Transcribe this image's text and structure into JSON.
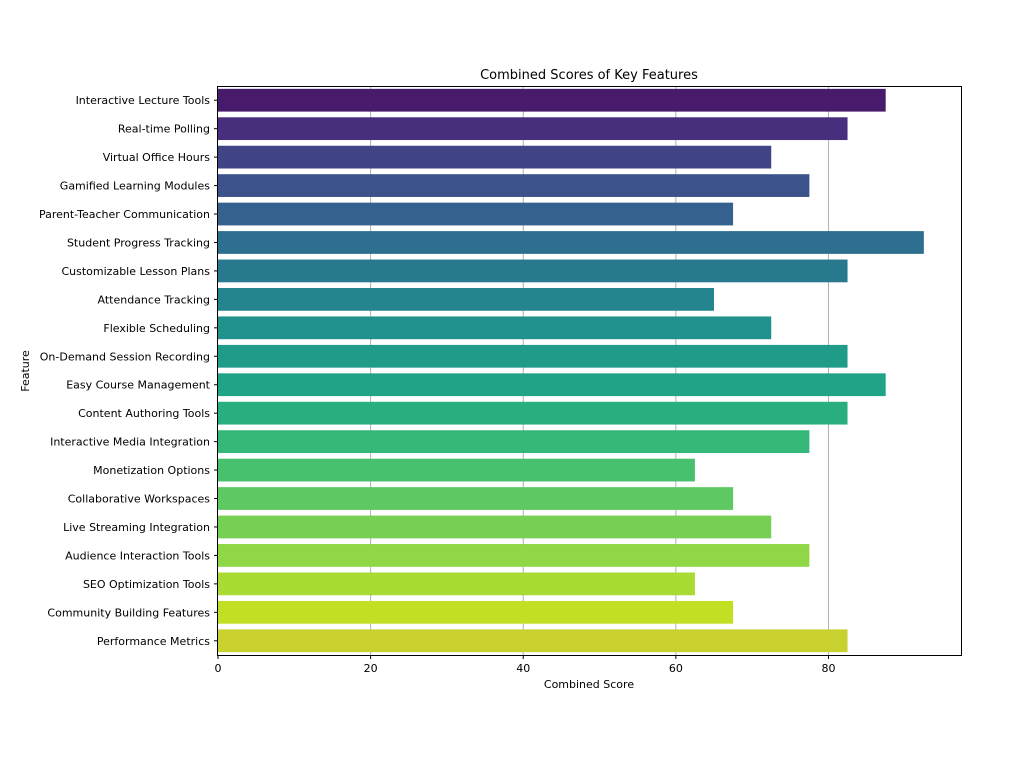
{
  "chart_data": {
    "type": "bar",
    "orientation": "horizontal",
    "title": "Combined Scores of Key Features",
    "xlabel": "Combined Score",
    "ylabel": "Feature",
    "xlim": [
      0,
      97.5
    ],
    "xticks": [
      0,
      20,
      40,
      60,
      80
    ],
    "grid": "vertical",
    "colormap": "viridis",
    "categories": [
      "Interactive Lecture Tools",
      "Real-time Polling",
      "Virtual Office Hours",
      "Gamified Learning Modules",
      "Parent-Teacher Communication",
      "Student Progress Tracking",
      "Customizable Lesson Plans",
      "Attendance Tracking",
      "Flexible Scheduling",
      "On-Demand Session Recording",
      "Easy Course Management",
      "Content Authoring Tools",
      "Interactive Media Integration",
      "Monetization Options",
      "Collaborative Workspaces",
      "Live Streaming Integration",
      "Audience Interaction Tools",
      "SEO Optimization Tools",
      "Community Building Features",
      "Performance Metrics"
    ],
    "values": [
      87.5,
      82.5,
      72.5,
      77.5,
      67.5,
      92.5,
      82.5,
      65,
      72.5,
      82.5,
      87.5,
      82.5,
      77.5,
      62.5,
      67.5,
      72.5,
      77.5,
      62.5,
      67.5,
      82.5
    ],
    "colors": [
      "#481a6c",
      "#472f7d",
      "#414487",
      "#3b528b",
      "#34618d",
      "#2e6e8e",
      "#29798e",
      "#25858e",
      "#21918c",
      "#1e9c89",
      "#20a386",
      "#29af7f",
      "#35b779",
      "#48c16e",
      "#5ec962",
      "#75d054",
      "#8fd744",
      "#a8db34",
      "#c2df23",
      "#c8d12e"
    ]
  }
}
